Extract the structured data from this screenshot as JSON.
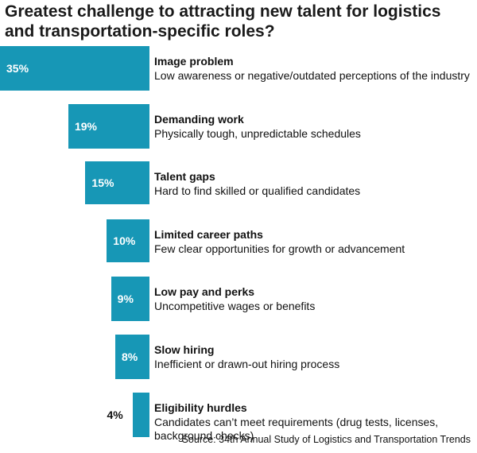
{
  "chart_data": {
    "type": "bar",
    "title": "Greatest challenge to attracting new talent for logistics and transportation-specific roles?",
    "categories": [
      "Image problem",
      "Demanding work",
      "Talent gaps",
      "Limited career paths",
      "Low pay and perks",
      "Slow hiring",
      "Eligibility hurdles"
    ],
    "descriptions": [
      "Low awareness or negative/outdated perceptions of the industry",
      "Physically tough, unpredictable schedules",
      "Hard to find skilled or qualified candidates",
      "Few clear opportunities for growth or advancement",
      "Uncompetitive wages or benefits",
      "Inefficient or drawn-out hiring process",
      "Candidates can’t meet requirements (drug tests, licenses, background checks)"
    ],
    "values": [
      35,
      19,
      15,
      10,
      9,
      8,
      4
    ],
    "value_labels": [
      "35%",
      "19%",
      "15%",
      "10%",
      "9%",
      "8%",
      "4%"
    ],
    "unit": "%",
    "orientation": "horizontal",
    "bars_extend_left_from_labels": true,
    "bar_color": "#1797b6",
    "grid": false,
    "legend": "none",
    "source": "Source: 34th Annual Study of Logistics and Transportation Trends"
  }
}
